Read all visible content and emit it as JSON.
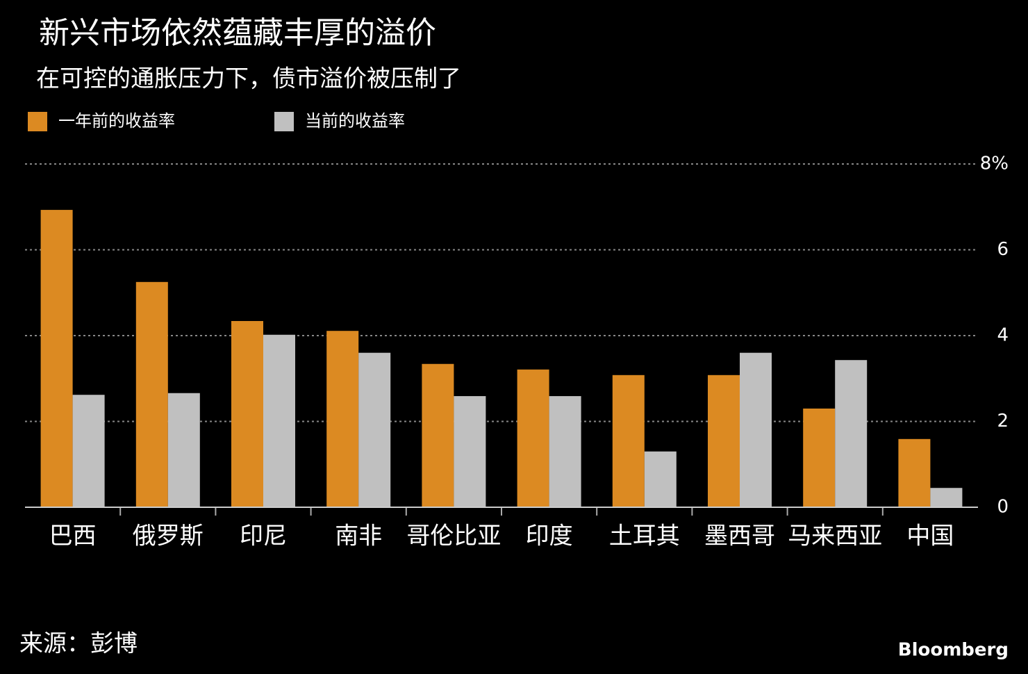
{
  "chart_data": {
    "type": "bar",
    "title": "新兴市场依然蕴藏丰厚的溢价",
    "subtitle": "在可控的通胀压力下，债市溢价被压制了",
    "categories": [
      "巴西",
      "俄罗斯",
      "印尼",
      "南非",
      "哥伦比亚",
      "印度",
      "土耳其",
      "墨西哥",
      "马来西亚",
      "中国"
    ],
    "series": [
      {
        "name": "一年前的收益率",
        "color": "#dc8a22",
        "values": [
          6.93,
          5.25,
          4.34,
          4.11,
          3.34,
          3.21,
          3.08,
          3.08,
          2.3,
          1.59
        ]
      },
      {
        "name": "当前的收益率",
        "color": "#c0c0c0",
        "values": [
          2.62,
          2.66,
          4.02,
          3.6,
          2.59,
          2.59,
          1.3,
          3.6,
          3.43,
          0.45
        ]
      }
    ],
    "ylim": [
      0,
      8
    ],
    "yticks": [
      0,
      2,
      4,
      6,
      {
        "value": 8,
        "label": "8%"
      }
    ],
    "grid": true,
    "legend": "top-left"
  },
  "footer": {
    "source": "来源：彭博",
    "brand": "Bloomberg"
  }
}
